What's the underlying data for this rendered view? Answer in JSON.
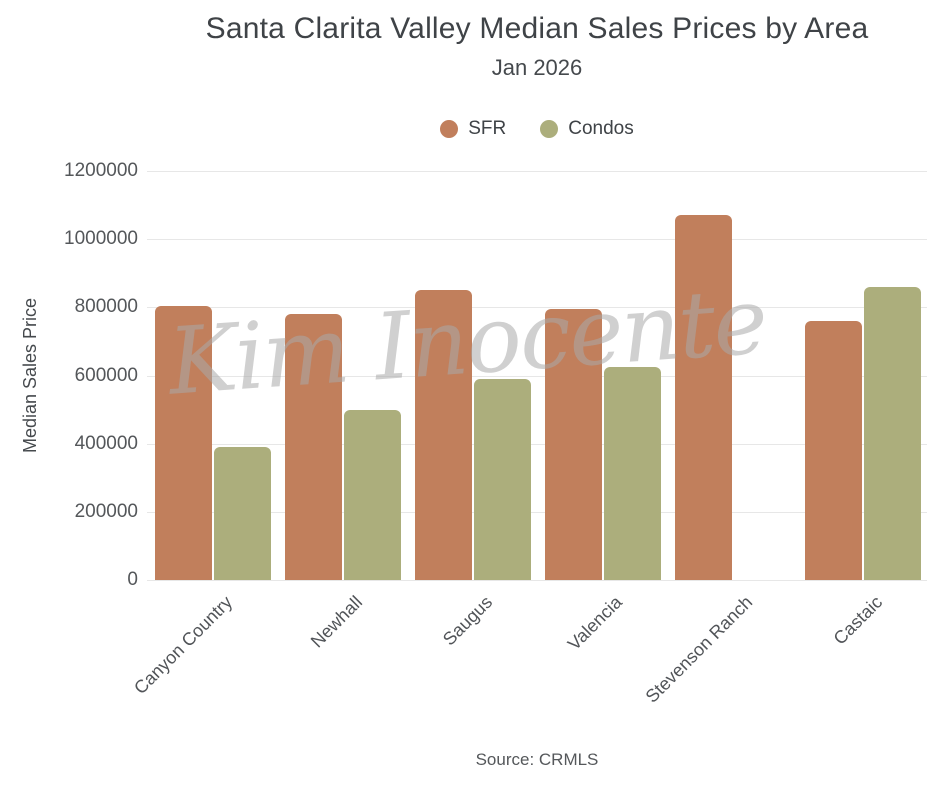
{
  "header": {
    "title": "Santa Clarita Valley Median Sales Prices by Area",
    "subtitle": "Jan 2026"
  },
  "chart_data": {
    "type": "bar",
    "title": "Santa Clarita Valley Median Sales Prices by Area",
    "subtitle": "Jan 2026",
    "categories": [
      "Canyon Country",
      "Newhall",
      "Saugus",
      "Valencia",
      "Stevenson Ranch",
      "Castaic"
    ],
    "series": [
      {
        "name": "SFR",
        "color": "#c17f5c",
        "values": [
          805000,
          780000,
          850000,
          795000,
          1070000,
          760000
        ]
      },
      {
        "name": "Condos",
        "color": "#acae7c",
        "values": [
          390000,
          500000,
          590000,
          625000,
          null,
          860000
        ]
      }
    ],
    "xlabel": "",
    "ylabel": "Median Sales Price",
    "ylim": [
      0,
      1200000
    ],
    "yticks": [
      0,
      200000,
      400000,
      600000,
      800000,
      1000000,
      1200000
    ],
    "grid": true,
    "legend_position": "top-center",
    "source": "Source: CRMLS",
    "watermark": "Kim Inocente"
  },
  "colors": {
    "sfr": "#c17f5c",
    "condos": "#acae7c",
    "title_text": "#3f4347",
    "axis_text": "#54575a",
    "gridline": "#e7e7e7",
    "watermark_gray": "#d0d0d0",
    "background": "#ffffff"
  }
}
